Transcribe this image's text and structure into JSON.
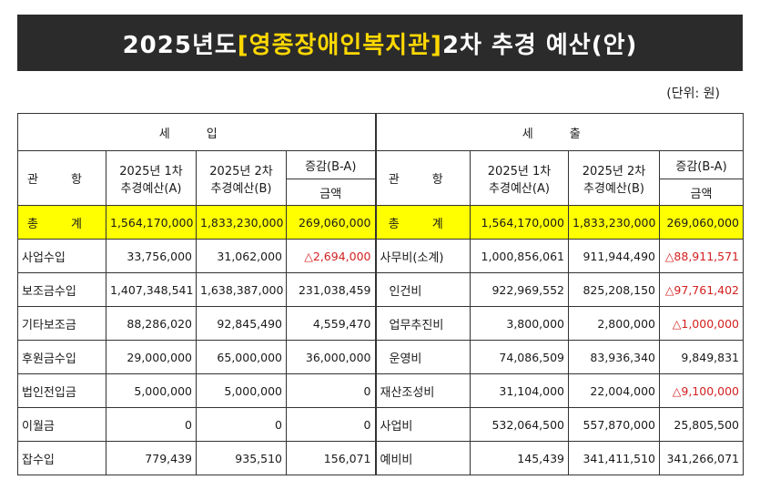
{
  "title": {
    "prefix": "2025년도 ",
    "highlight": "[영종장애인복지관]",
    "suffix": " 2차 추경 예산(안)"
  },
  "unit": "(단위: 원)",
  "headers": {
    "income": "세 입",
    "expense": "세 출",
    "gwanhang": "관 항",
    "col_first_l1": "2025년 1차",
    "col_first_l2": "추경예산(A)",
    "col_second_l1": "2025년 2차",
    "col_second_l2": "추경예산(B)",
    "col_diff_l1": "증감(B-A)",
    "col_diff_l2": "금액"
  },
  "total": {
    "income_label": "총 계",
    "income_a": "1,564,170,000",
    "income_b": "1,833,230,000",
    "income_diff": "269,060,000",
    "expense_label": "총 계",
    "expense_a": "1,564,170,000",
    "expense_b": "1,833,230,000",
    "expense_diff": "269,060,000"
  },
  "rows": [
    {
      "in_label": "사업수입",
      "in_a": "33,756,000",
      "in_b": "31,062,000",
      "in_diff": "△2,694,000",
      "ex_label": "사무비(소계)",
      "ex_a": "1,000,856,061",
      "ex_b": "911,944,490",
      "ex_diff": "△88,911,571"
    },
    {
      "in_label": "보조금수입",
      "in_a": "1,407,348,541",
      "in_b": "1,638,387,000",
      "in_diff": "231,038,459",
      "ex_label": "인건비",
      "ex_a": "922,969,552",
      "ex_b": "825,208,150",
      "ex_diff": "△97,761,402"
    },
    {
      "in_label": "기타보조금",
      "in_a": "88,286,020",
      "in_b": "92,845,490",
      "in_diff": "4,559,470",
      "ex_label": "업무추진비",
      "ex_a": "3,800,000",
      "ex_b": "2,800,000",
      "ex_diff": "△1,000,000"
    },
    {
      "in_label": "후원금수입",
      "in_a": "29,000,000",
      "in_b": "65,000,000",
      "in_diff": "36,000,000",
      "ex_label": "운영비",
      "ex_a": "74,086,509",
      "ex_b": "83,936,340",
      "ex_diff": "9,849,831"
    },
    {
      "in_label": "법인전입금",
      "in_a": "5,000,000",
      "in_b": "5,000,000",
      "in_diff": "0",
      "ex_label": "재산조성비",
      "ex_a": "31,104,000",
      "ex_b": "22,004,000",
      "ex_diff": "△9,100,000"
    },
    {
      "in_label": "이월금",
      "in_a": "0",
      "in_b": "0",
      "in_diff": "0",
      "ex_label": "사업비",
      "ex_a": "532,064,500",
      "ex_b": "557,870,000",
      "ex_diff": "25,805,500"
    },
    {
      "in_label": "잡수입",
      "in_a": "779,439",
      "in_b": "935,510",
      "in_diff": "156,071",
      "ex_label": "예비비",
      "ex_a": "145,439",
      "ex_b": "341,411,510",
      "ex_diff": "341,266,071"
    }
  ]
}
